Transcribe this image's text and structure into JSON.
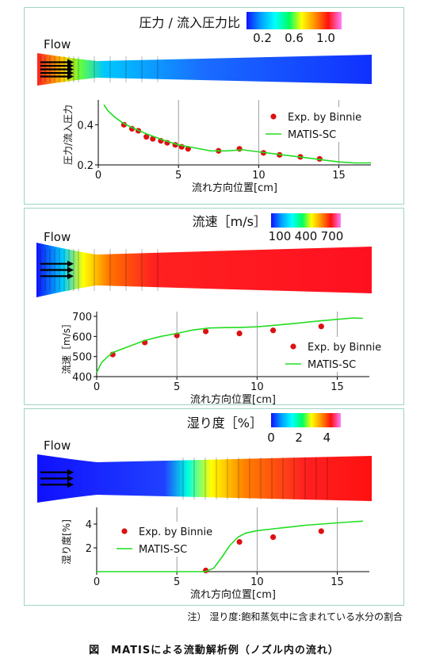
{
  "note": "注） 湿り度:飽和蒸気中に含まれている水分の割合",
  "caption": "図　MATISによる流動解析例（ノズル内の流れ）",
  "colors": {
    "exp": "#dd1111",
    "sim": "#22dd22",
    "border": "#9fd4c4"
  },
  "chart_data": [
    {
      "type": "line",
      "colorbar_title": "圧力 / 流入圧力比",
      "colorbar_ticks": [
        "0.2",
        "0.6",
        "1.0"
      ],
      "colorbar_range": [
        0.0,
        1.2
      ],
      "flow_label": "Flow",
      "xlabel": "流れ方向位置[cm]",
      "ylabel": "圧力/流入圧力",
      "xlim": [
        0,
        17
      ],
      "ylim": [
        0.2,
        0.5
      ],
      "xticks": [
        0,
        5,
        10,
        15
      ],
      "yticks": [
        0.2,
        0.4
      ],
      "legend": "top-right",
      "series": [
        {
          "name": "Exp. by Binnie",
          "kind": "scatter",
          "x": [
            1.6,
            2.1,
            2.5,
            3.0,
            3.4,
            3.9,
            4.3,
            4.8,
            5.2,
            5.6,
            7.5,
            8.8,
            10.3,
            11.3,
            12.6,
            13.8
          ],
          "y": [
            0.4,
            0.38,
            0.37,
            0.34,
            0.33,
            0.32,
            0.31,
            0.3,
            0.29,
            0.28,
            0.27,
            0.28,
            0.26,
            0.25,
            0.24,
            0.23
          ]
        },
        {
          "name": "MATIS-SC",
          "kind": "line",
          "x": [
            0.35,
            0.6,
            1.0,
            1.5,
            2.0,
            3.0,
            4.0,
            5.0,
            6.0,
            7.0,
            8.0,
            9.0,
            10.0,
            11.0,
            12.0,
            13.0,
            14.0,
            15.0,
            16.0,
            17.0
          ],
          "y": [
            0.5,
            0.47,
            0.44,
            0.41,
            0.39,
            0.355,
            0.325,
            0.3,
            0.285,
            0.27,
            0.27,
            0.275,
            0.265,
            0.255,
            0.245,
            0.235,
            0.225,
            0.215,
            0.21,
            0.21
          ]
        }
      ]
    },
    {
      "type": "line",
      "colorbar_title": "流速［m/s］",
      "colorbar_ticks": [
        "100",
        "400",
        "700"
      ],
      "colorbar_range": [
        0,
        800
      ],
      "flow_label": "Flow",
      "xlabel": "流れ方向位置[cm]",
      "ylabel": "流速［m/s］",
      "xlim": [
        0,
        17
      ],
      "ylim": [
        400,
        700
      ],
      "xticks": [
        0,
        5,
        10,
        15
      ],
      "yticks": [
        400,
        500,
        600,
        700
      ],
      "legend": "bottom-right",
      "series": [
        {
          "name": "Exp. by Binnie",
          "kind": "scatter",
          "x": [
            1.0,
            3.0,
            5.0,
            6.8,
            8.9,
            11.0,
            14.0
          ],
          "y": [
            510,
            570,
            605,
            625,
            615,
            630,
            650
          ]
        },
        {
          "name": "MATIS-SC",
          "kind": "line",
          "x": [
            0.0,
            0.3,
            0.7,
            1.0,
            2.0,
            3.0,
            4.0,
            5.0,
            6.0,
            7.0,
            8.0,
            9.0,
            10.0,
            11.0,
            12.0,
            13.0,
            14.0,
            15.0,
            16.0,
            16.6
          ],
          "y": [
            420,
            470,
            500,
            520,
            550,
            580,
            600,
            615,
            632,
            642,
            644,
            645,
            648,
            655,
            662,
            670,
            678,
            685,
            692,
            690
          ]
        }
      ]
    },
    {
      "type": "line",
      "colorbar_title": "湿り度［%］",
      "colorbar_ticks": [
        "0",
        "2",
        "4"
      ],
      "colorbar_range": [
        0,
        5
      ],
      "flow_label": "Flow",
      "xlabel": "流れ方向位置[cm]",
      "ylabel": "湿り度[%]",
      "xlim": [
        0,
        17
      ],
      "ylim": [
        0,
        5
      ],
      "xticks": [
        0,
        5,
        10,
        15
      ],
      "yticks": [
        2,
        4
      ],
      "legend": "top-left",
      "series": [
        {
          "name": "Exp. by Binnie",
          "kind": "scatter",
          "x": [
            6.8,
            8.9,
            11.0,
            14.0
          ],
          "y": [
            0.1,
            2.5,
            2.9,
            3.4
          ]
        },
        {
          "name": "MATIS-SC",
          "kind": "line",
          "x": [
            0.0,
            6.0,
            6.8,
            7.3,
            7.8,
            8.3,
            8.8,
            9.3,
            10.0,
            11.0,
            12.0,
            13.0,
            14.0,
            15.0,
            16.0,
            16.6
          ],
          "y": [
            0,
            0,
            0,
            0.3,
            1.2,
            2.2,
            2.9,
            3.25,
            3.45,
            3.6,
            3.75,
            3.9,
            4.0,
            4.1,
            4.2,
            4.25
          ]
        }
      ]
    }
  ]
}
